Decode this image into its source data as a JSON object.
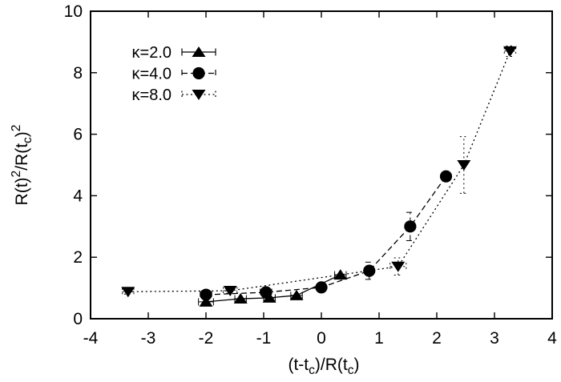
{
  "figure": {
    "background": "#ffffff",
    "ink_color": "#000000"
  },
  "chart_data": {
    "type": "scatter",
    "title": "",
    "xlabel": "(t-t_c)/R(t_c)",
    "ylabel": "R(t)^2/R(t_c)^2",
    "xlim": [
      -4,
      4
    ],
    "ylim": [
      0,
      10
    ],
    "xticks": [
      -4,
      -3,
      -2,
      -1,
      0,
      1,
      2,
      3,
      4
    ],
    "yticks": [
      0,
      2,
      4,
      6,
      8,
      10
    ],
    "grid": false,
    "legend_position": "top-left-inside",
    "series": [
      {
        "name": "κ=2.0",
        "marker": "triangle-up",
        "line_style": "solid",
        "color": "#000000",
        "points": [
          {
            "x": -2.0,
            "y": 0.55,
            "xerr": 0.13
          },
          {
            "x": -1.4,
            "y": 0.65,
            "xerr": 0.1
          },
          {
            "x": -0.9,
            "y": 0.68,
            "xerr": 0.1
          },
          {
            "x": -0.43,
            "y": 0.76,
            "xerr": 0.1
          },
          {
            "x": 0.33,
            "y": 1.43,
            "xerr": 0.1
          }
        ]
      },
      {
        "name": "κ=4.0",
        "marker": "circle",
        "line_style": "dashed",
        "color": "#000000",
        "points": [
          {
            "x": -2.0,
            "y": 0.78,
            "xerr": 0.1,
            "yerr": 0.08
          },
          {
            "x": -0.96,
            "y": 0.86,
            "xerr": 0.1,
            "yerr": 0.08
          },
          {
            "x": 0.0,
            "y": 1.02,
            "xerr": 0.08,
            "yerr": 0.08
          },
          {
            "x": 0.83,
            "y": 1.56,
            "yerr": 0.28
          },
          {
            "x": 1.54,
            "y": 3.0,
            "yerr": 0.46
          },
          {
            "x": 2.16,
            "y": 4.63,
            "yerr": 0.1
          }
        ]
      },
      {
        "name": "κ=8.0",
        "marker": "triangle-down",
        "line_style": "dotted",
        "color": "#000000",
        "points": [
          {
            "x": -3.35,
            "y": 0.88,
            "xerr": 0.1,
            "yerr": 0.08
          },
          {
            "x": -1.58,
            "y": 0.91,
            "xerr": 0.12,
            "yerr": 0.08
          },
          {
            "x": 1.33,
            "y": 1.7,
            "xerr": 0.14,
            "yerr": 0.28
          },
          {
            "x": 2.47,
            "y": 5.0,
            "yerr": 0.92
          },
          {
            "x": 3.27,
            "y": 8.7,
            "xerr": 0.1,
            "yerr": 0.17
          }
        ]
      }
    ]
  }
}
